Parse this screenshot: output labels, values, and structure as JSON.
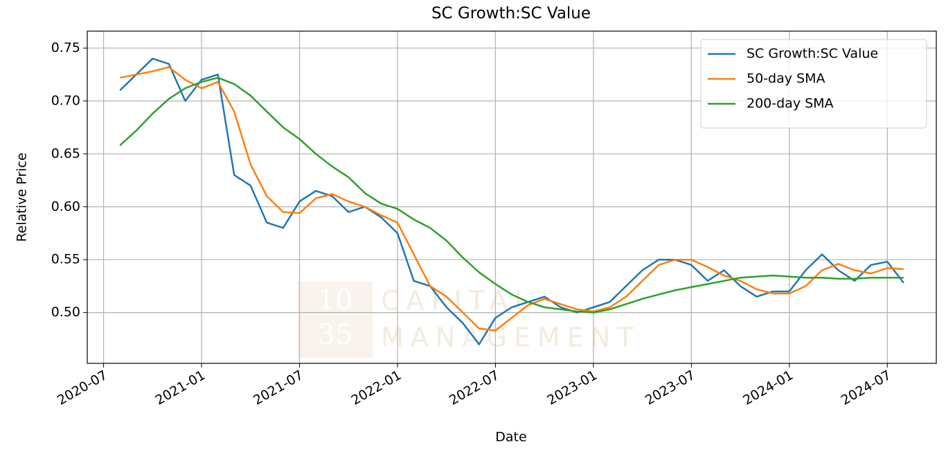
{
  "chart_data": {
    "type": "line",
    "title": "SC Growth:SC Value",
    "xlabel": "Date",
    "ylabel": "Relative Price",
    "x": [
      "2020-08",
      "2020-09",
      "2020-10",
      "2020-11",
      "2020-12",
      "2021-01",
      "2021-02",
      "2021-03",
      "2021-04",
      "2021-05",
      "2021-06",
      "2021-07",
      "2021-08",
      "2021-09",
      "2021-10",
      "2021-11",
      "2021-12",
      "2022-01",
      "2022-02",
      "2022-03",
      "2022-04",
      "2022-05",
      "2022-06",
      "2022-07",
      "2022-08",
      "2022-09",
      "2022-10",
      "2022-11",
      "2022-12",
      "2023-01",
      "2023-02",
      "2023-03",
      "2023-04",
      "2023-05",
      "2023-06",
      "2023-07",
      "2023-08",
      "2023-09",
      "2023-10",
      "2023-11",
      "2023-12",
      "2024-01",
      "2024-02",
      "2024-03",
      "2024-04",
      "2024-05",
      "2024-06",
      "2024-07",
      "2024-08"
    ],
    "series": [
      {
        "name": "SC Growth:SC Value",
        "color": "#1f77b4",
        "values": [
          0.71,
          0.725,
          0.74,
          0.735,
          0.7,
          0.72,
          0.725,
          0.63,
          0.62,
          0.585,
          0.58,
          0.605,
          0.615,
          0.61,
          0.595,
          0.6,
          0.59,
          0.575,
          0.53,
          0.525,
          0.505,
          0.49,
          0.47,
          0.495,
          0.505,
          0.51,
          0.515,
          0.505,
          0.5,
          0.505,
          0.51,
          0.525,
          0.54,
          0.55,
          0.55,
          0.545,
          0.53,
          0.54,
          0.525,
          0.515,
          0.52,
          0.52,
          0.54,
          0.555,
          0.54,
          0.53,
          0.545,
          0.548,
          0.528
        ]
      },
      {
        "name": "50-day SMA",
        "color": "#ff7f0e",
        "values": [
          0.722,
          0.725,
          0.728,
          0.732,
          0.72,
          0.712,
          0.718,
          0.69,
          0.64,
          0.61,
          0.595,
          0.594,
          0.608,
          0.612,
          0.605,
          0.6,
          0.592,
          0.585,
          0.555,
          0.525,
          0.515,
          0.5,
          0.485,
          0.483,
          0.495,
          0.507,
          0.513,
          0.508,
          0.503,
          0.501,
          0.505,
          0.515,
          0.53,
          0.545,
          0.55,
          0.55,
          0.543,
          0.535,
          0.53,
          0.522,
          0.518,
          0.518,
          0.525,
          0.54,
          0.546,
          0.54,
          0.537,
          0.542,
          0.541
        ]
      },
      {
        "name": "200-day SMA",
        "color": "#2ca02c",
        "values": [
          0.658,
          0.672,
          0.688,
          0.702,
          0.712,
          0.718,
          0.722,
          0.716,
          0.705,
          0.69,
          0.675,
          0.664,
          0.65,
          0.638,
          0.628,
          0.613,
          0.603,
          0.598,
          0.588,
          0.58,
          0.568,
          0.552,
          0.538,
          0.527,
          0.517,
          0.51,
          0.505,
          0.503,
          0.501,
          0.5,
          0.503,
          0.508,
          0.513,
          0.517,
          0.521,
          0.524,
          0.527,
          0.53,
          0.533,
          0.534,
          0.535,
          0.534,
          0.533,
          0.533,
          0.532,
          0.532,
          0.533,
          0.533,
          0.533
        ]
      }
    ],
    "xlim": [
      "2020-06",
      "2024-10"
    ],
    "xticks": [
      "2020-07",
      "2021-01",
      "2021-07",
      "2022-01",
      "2022-07",
      "2023-01",
      "2023-07",
      "2024-01",
      "2024-07"
    ],
    "ylim": [
      0.452,
      0.766
    ],
    "yticks": [
      {
        "value": 0.5,
        "label": "0.50"
      },
      {
        "value": 0.55,
        "label": "0.55"
      },
      {
        "value": 0.6,
        "label": "0.60"
      },
      {
        "value": 0.65,
        "label": "0.65"
      },
      {
        "value": 0.7,
        "label": "0.70"
      },
      {
        "value": 0.75,
        "label": "0.75"
      }
    ],
    "grid": true,
    "legend": "upper right",
    "watermark": [
      "10",
      "35",
      "CAPITAL",
      "MANAGEMENT"
    ]
  }
}
